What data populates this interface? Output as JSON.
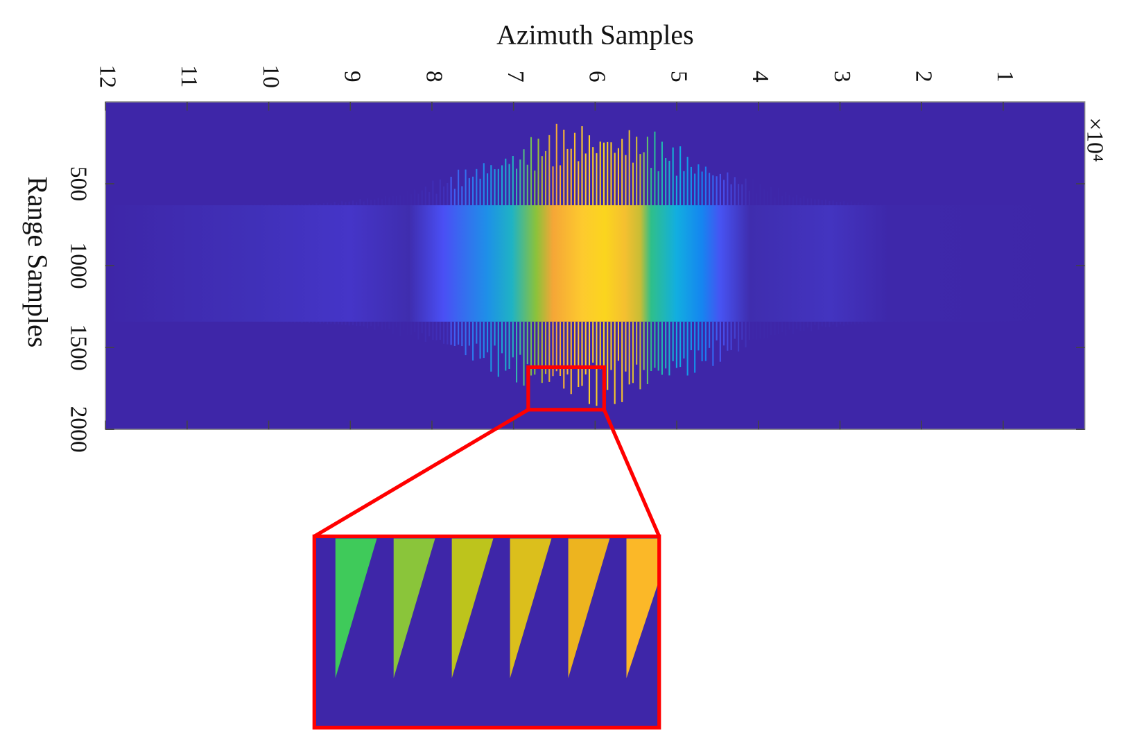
{
  "chart_data": {
    "type": "heatmap",
    "xlabel": "Azimuth Samples",
    "ylabel": "Range Samples",
    "x_multiplier": "×10⁴",
    "xlim": [
      12,
      0
    ],
    "xticks": [
      12,
      11,
      10,
      9,
      8,
      7,
      6,
      5,
      4,
      3,
      2,
      1
    ],
    "ylim": [
      0,
      2000
    ],
    "yticks": [
      500,
      1000,
      1500,
      2000
    ],
    "zoom_box": {
      "x": [
        6.82,
        5.89
      ],
      "y": [
        1620,
        1880
      ],
      "color": "#ff0000"
    }
  }
}
